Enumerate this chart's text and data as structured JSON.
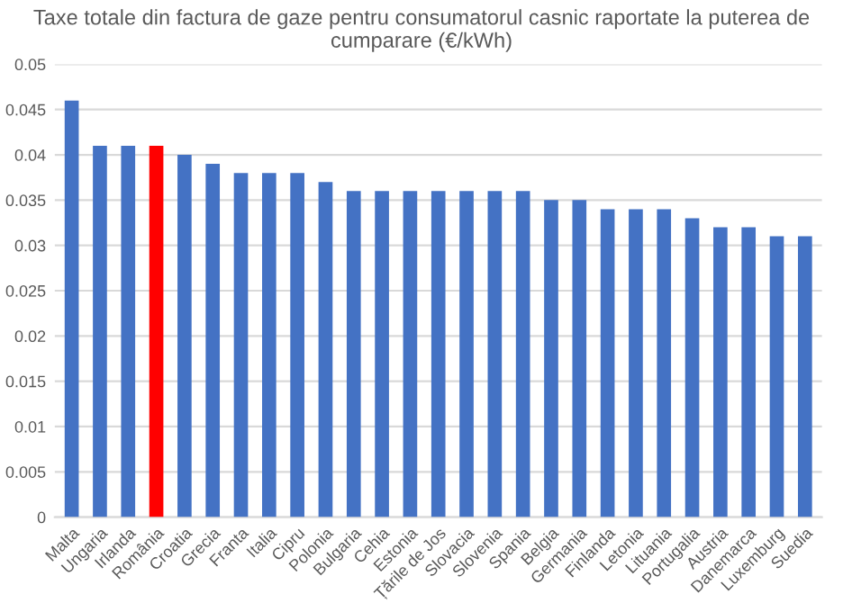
{
  "chart_data": {
    "type": "bar",
    "title": "Taxe totale din factura de gaze pentru consumatorul casnic raportate la puterea de cumparare (€/kWh)",
    "categories": [
      "Malta",
      "Ungaria",
      "Irlanda",
      "România",
      "Croatia",
      "Grecia",
      "Franta",
      "Italia",
      "Cipru",
      "Polonia",
      "Bulgaria",
      "Cehia",
      "Estonia",
      "Țările de Jos",
      "Slovacia",
      "Slovenia",
      "Spania",
      "Belgia",
      "Germania",
      "Finlanda",
      "Letonia",
      "Lituania",
      "Portugalia",
      "Austria",
      "Danemarca",
      "Luxemburg",
      "Suedia"
    ],
    "values": [
      0.046,
      0.041,
      0.041,
      0.041,
      0.04,
      0.039,
      0.038,
      0.038,
      0.038,
      0.037,
      0.036,
      0.036,
      0.036,
      0.036,
      0.036,
      0.036,
      0.036,
      0.035,
      0.035,
      0.034,
      0.034,
      0.034,
      0.033,
      0.032,
      0.032,
      0.031,
      0.031
    ],
    "colors": [
      "#4472c4",
      "#4472c4",
      "#4472c4",
      "#ff0000",
      "#4472c4",
      "#4472c4",
      "#4472c4",
      "#4472c4",
      "#4472c4",
      "#4472c4",
      "#4472c4",
      "#4472c4",
      "#4472c4",
      "#4472c4",
      "#4472c4",
      "#4472c4",
      "#4472c4",
      "#4472c4",
      "#4472c4",
      "#4472c4",
      "#4472c4",
      "#4472c4",
      "#4472c4",
      "#4472c4",
      "#4472c4",
      "#4472c4",
      "#4472c4"
    ],
    "ylim": [
      0,
      0.05
    ],
    "yticks": [
      0,
      {
        "value": 0.005,
        "label": "0.005"
      },
      {
        "value": 0.01,
        "label": "0.01"
      },
      {
        "value": 0.015,
        "label": "0.015"
      },
      {
        "value": 0.02,
        "label": "0.02"
      },
      {
        "value": 0.025,
        "label": "0.025"
      },
      {
        "value": 0.03,
        "label": "0.03"
      },
      {
        "value": 0.035,
        "label": "0.035"
      },
      {
        "value": 0.04,
        "label": "0.04"
      },
      {
        "value": 0.045,
        "label": "0.045"
      },
      {
        "value": 0.05,
        "label": "0.05"
      }
    ],
    "grid": "y",
    "legend": false
  }
}
